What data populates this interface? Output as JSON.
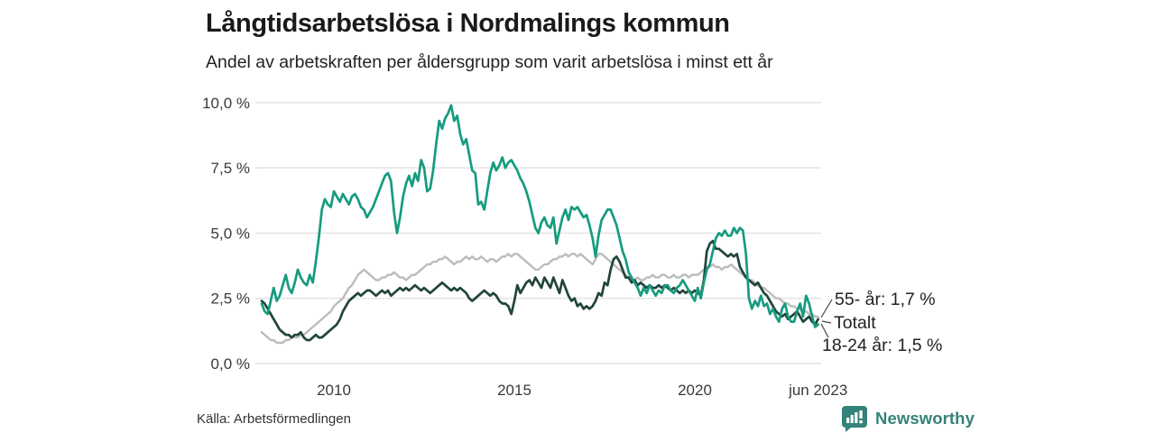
{
  "title": "Långtidsarbetslösa i Nordmalings kommun",
  "subtitle": "Andel av arbetskraften per åldersgrupp som varit arbetslösa i minst ett år",
  "source": "Källa: Arbetsförmedlingen",
  "branding": {
    "name": "Newsworthy",
    "color": "#35827b"
  },
  "colors": {
    "grid": "#e2e2e2",
    "axis_text": "#3a3a3a",
    "title_text": "#1a1a1a",
    "label_text": "#222222",
    "leader": "#444444"
  },
  "chart_data": {
    "type": "line",
    "title": "Långtidsarbetslösa i Nordmalings kommun",
    "subtitle": "Andel av arbetskraften per åldersgrupp som varit arbetslösa i minst ett år",
    "xlabel": "",
    "ylabel": "",
    "ylim": [
      0,
      10
    ],
    "grid": "horizontal",
    "legend_position": "end-of-line-labels",
    "yticks": [
      {
        "value": 0,
        "label": "0,0 %"
      },
      {
        "value": 2.5,
        "label": "2,5 %"
      },
      {
        "value": 5,
        "label": "5,0 %"
      },
      {
        "value": 7.5,
        "label": "7,5 %"
      },
      {
        "value": 10,
        "label": "10,0 %"
      }
    ],
    "xticks": [
      {
        "t": 2010,
        "label": "2010"
      },
      {
        "t": 2015,
        "label": "2015"
      },
      {
        "t": 2020,
        "label": "2020"
      },
      {
        "t": 2023.417,
        "label": "jun 2023"
      }
    ],
    "start": "2008-01",
    "end": "2023-06",
    "frequency": "monthly",
    "unit": "% av arbetskraften",
    "series": [
      {
        "name": "Totalt",
        "end_label": "Totalt",
        "end_value": null,
        "color": "#bcbcbc",
        "values": [
          1.2,
          1.1,
          1.0,
          0.9,
          0.9,
          0.8,
          0.8,
          0.8,
          0.9,
          0.9,
          1.0,
          1.0,
          1.0,
          1.1,
          1.1,
          1.2,
          1.3,
          1.4,
          1.5,
          1.6,
          1.7,
          1.8,
          1.9,
          2.0,
          2.2,
          2.3,
          2.4,
          2.5,
          2.7,
          2.9,
          3.0,
          3.2,
          3.4,
          3.5,
          3.6,
          3.5,
          3.4,
          3.3,
          3.2,
          3.2,
          3.3,
          3.3,
          3.4,
          3.4,
          3.5,
          3.4,
          3.3,
          3.3,
          3.2,
          3.3,
          3.4,
          3.4,
          3.5,
          3.6,
          3.7,
          3.8,
          3.8,
          3.9,
          3.9,
          4.0,
          4.0,
          4.1,
          4.0,
          3.9,
          3.8,
          3.9,
          3.9,
          4.0,
          4.1,
          4.0,
          4.1,
          4.0,
          4.0,
          4.1,
          4.0,
          3.9,
          4.0,
          4.0,
          3.9,
          4.0,
          4.1,
          4.1,
          4.2,
          4.1,
          4.2,
          4.2,
          4.1,
          4.0,
          3.9,
          3.8,
          3.7,
          3.6,
          3.6,
          3.7,
          3.8,
          3.8,
          3.9,
          4.0,
          4.0,
          4.1,
          4.1,
          4.2,
          4.1,
          4.2,
          4.2,
          4.1,
          4.2,
          4.1,
          4.0,
          3.9,
          3.8,
          4.0,
          4.2,
          4.2,
          4.1,
          4.0,
          3.9,
          3.8,
          3.7,
          3.6,
          3.5,
          3.4,
          3.3,
          3.2,
          3.2,
          3.3,
          3.2,
          3.2,
          3.3,
          3.3,
          3.4,
          3.3,
          3.3,
          3.4,
          3.4,
          3.3,
          3.3,
          3.4,
          3.3,
          3.3,
          3.4,
          3.4,
          3.3,
          3.4,
          3.4,
          3.4,
          3.5,
          3.6,
          3.7,
          3.7,
          3.8,
          3.7,
          3.7,
          3.6,
          3.7,
          3.7,
          3.8,
          3.7,
          3.6,
          3.5,
          3.4,
          3.3,
          3.2,
          3.2,
          3.1,
          3.0,
          2.9,
          2.9,
          2.8,
          2.7,
          2.6,
          2.5,
          2.5,
          2.4,
          2.3,
          2.3,
          2.2,
          2.2,
          2.1,
          2.1,
          2.0,
          2.0,
          1.9,
          1.9,
          1.8,
          1.8
        ]
      },
      {
        "name": "55- år",
        "end_label": "55- år: 1,7 %",
        "end_value": 1.7,
        "color": "#21453a",
        "values": [
          2.4,
          2.3,
          2.1,
          1.9,
          1.7,
          1.5,
          1.3,
          1.2,
          1.1,
          1.1,
          1.0,
          1.1,
          1.1,
          1.2,
          1.0,
          0.9,
          0.9,
          1.0,
          1.1,
          1.0,
          1.0,
          1.1,
          1.2,
          1.3,
          1.4,
          1.5,
          1.7,
          2.0,
          2.2,
          2.4,
          2.5,
          2.6,
          2.7,
          2.6,
          2.7,
          2.8,
          2.8,
          2.7,
          2.6,
          2.7,
          2.8,
          2.7,
          2.8,
          2.6,
          2.7,
          2.8,
          2.9,
          2.8,
          2.9,
          2.8,
          2.9,
          3.0,
          2.9,
          2.8,
          2.9,
          2.8,
          2.7,
          2.8,
          2.9,
          3.0,
          3.1,
          3.0,
          2.9,
          2.8,
          2.9,
          2.8,
          2.9,
          2.8,
          2.7,
          2.5,
          2.4,
          2.5,
          2.6,
          2.7,
          2.8,
          2.7,
          2.6,
          2.7,
          2.6,
          2.4,
          2.3,
          2.3,
          2.2,
          1.9,
          2.4,
          3.0,
          2.7,
          2.9,
          3.1,
          3.2,
          3.0,
          3.3,
          3.1,
          2.9,
          3.3,
          3.1,
          2.9,
          3.3,
          3.0,
          2.7,
          3.2,
          2.9,
          2.6,
          2.4,
          2.5,
          2.2,
          2.3,
          2.1,
          2.2,
          2.1,
          2.2,
          2.4,
          2.7,
          2.6,
          3.1,
          3.0,
          3.6,
          4.0,
          4.1,
          3.9,
          3.6,
          3.3,
          3.3,
          3.1,
          3.2,
          3.0,
          3.1,
          3.0,
          2.9,
          3.0,
          2.9,
          2.9,
          3.0,
          2.9,
          3.0,
          2.9,
          2.8,
          2.9,
          2.8,
          2.7,
          2.8,
          2.7,
          2.8,
          2.7,
          2.8,
          2.7,
          2.6,
          3.2,
          4.3,
          4.6,
          4.7,
          4.4,
          4.4,
          4.3,
          4.2,
          4.1,
          4.2,
          4.1,
          4.2,
          3.7,
          3.5,
          3.3,
          3.2,
          3.1,
          3.0,
          3.1,
          2.9,
          2.7,
          2.6,
          2.4,
          2.2,
          2.0,
          1.9,
          1.8,
          1.9,
          1.7,
          1.8,
          1.9,
          2.0,
          1.8,
          1.6,
          1.7,
          1.8,
          1.6,
          1.5,
          1.7
        ]
      },
      {
        "name": "18-24 år",
        "end_label": "18-24 år: 1,5 %",
        "end_value": 1.5,
        "color": "#169b7f",
        "values": [
          2.3,
          2.0,
          1.9,
          2.4,
          2.9,
          2.4,
          2.6,
          3.0,
          3.4,
          2.9,
          2.7,
          3.1,
          3.6,
          3.3,
          3.1,
          3.0,
          3.4,
          3.1,
          3.9,
          4.8,
          5.9,
          6.3,
          6.1,
          6.0,
          6.6,
          6.4,
          6.2,
          6.5,
          6.3,
          6.1,
          6.4,
          6.5,
          6.3,
          6.0,
          5.9,
          5.6,
          5.8,
          6.0,
          6.3,
          6.6,
          6.9,
          7.2,
          7.3,
          7.0,
          5.8,
          5.0,
          5.6,
          6.4,
          6.9,
          7.2,
          6.8,
          7.3,
          7.0,
          7.8,
          7.5,
          6.6,
          6.7,
          7.4,
          8.4,
          9.3,
          9.0,
          9.4,
          9.6,
          9.9,
          9.3,
          9.5,
          8.8,
          8.4,
          8.6,
          8.0,
          7.4,
          7.3,
          6.1,
          6.2,
          5.9,
          6.6,
          7.3,
          7.7,
          7.4,
          7.6,
          7.9,
          7.5,
          7.7,
          7.8,
          7.6,
          7.4,
          7.1,
          6.9,
          6.6,
          6.2,
          5.7,
          5.2,
          5.0,
          5.4,
          5.6,
          5.3,
          5.2,
          5.6,
          4.6,
          5.1,
          5.6,
          5.9,
          5.5,
          6.0,
          5.9,
          6.0,
          5.8,
          5.6,
          5.7,
          5.3,
          4.8,
          4.1,
          4.9,
          5.5,
          5.7,
          5.9,
          5.9,
          5.6,
          5.3,
          4.8,
          4.3,
          4.0,
          3.5,
          3.3,
          3.1,
          2.9,
          2.6,
          2.9,
          2.7,
          3.0,
          2.8,
          2.6,
          2.8,
          2.7,
          3.0,
          3.0,
          2.8,
          2.7,
          2.9,
          3.0,
          3.2,
          3.0,
          2.8,
          2.6,
          2.4,
          2.9,
          2.5,
          3.1,
          3.6,
          3.8,
          4.3,
          4.8,
          5.0,
          4.9,
          5.1,
          4.9,
          4.9,
          5.2,
          5.0,
          5.2,
          5.1,
          4.2,
          2.5,
          2.1,
          2.4,
          2.2,
          2.6,
          2.2,
          2.3,
          1.9,
          2.1,
          1.8,
          1.6,
          2.1,
          2.3,
          1.8,
          1.6,
          1.6,
          2.0,
          2.3,
          1.8,
          2.6,
          2.3,
          1.8,
          1.4,
          1.5
        ]
      }
    ]
  }
}
